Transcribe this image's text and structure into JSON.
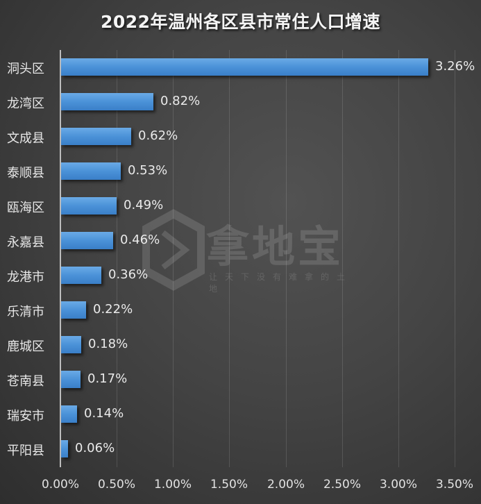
{
  "title": "2022年温州各区县市常住人口增速",
  "watermark": {
    "name": "拿地宝",
    "slogan": "让天下没有难拿的土地"
  },
  "colors": {
    "bar": "#4b92d8",
    "background": "#3c3c3c",
    "text": "#e8e8e8"
  },
  "chart_data": {
    "type": "bar",
    "orientation": "horizontal",
    "title": "2022年温州各区县市常住人口增速",
    "xlabel": "",
    "ylabel": "",
    "categories": [
      "洞头区",
      "龙湾区",
      "文成县",
      "泰顺县",
      "瓯海区",
      "永嘉县",
      "龙港市",
      "乐清市",
      "鹿城区",
      "苍南县",
      "瑞安市",
      "平阳县"
    ],
    "values": [
      3.26,
      0.82,
      0.62,
      0.53,
      0.49,
      0.46,
      0.36,
      0.22,
      0.18,
      0.17,
      0.14,
      0.06
    ],
    "value_labels": [
      "3.26%",
      "0.82%",
      "0.62%",
      "0.53%",
      "0.49%",
      "0.46%",
      "0.36%",
      "0.22%",
      "0.18%",
      "0.17%",
      "0.14%",
      "0.06%"
    ],
    "unit": "%",
    "xlim": [
      0,
      3.5
    ],
    "x_ticks": [
      "0.00%",
      "0.50%",
      "1.00%",
      "1.50%",
      "2.00%",
      "2.50%",
      "3.00%",
      "3.50%"
    ],
    "grid": "vertical",
    "legend": "none"
  }
}
